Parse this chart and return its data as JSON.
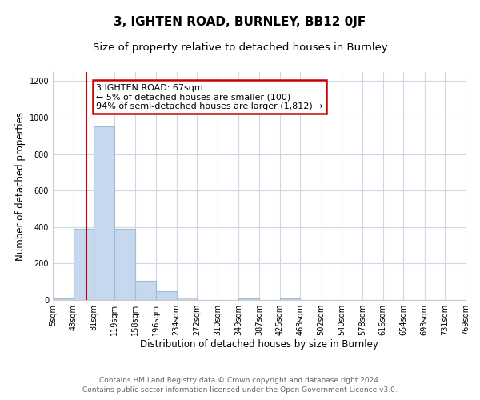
{
  "title": "3, IGHTEN ROAD, BURNLEY, BB12 0JF",
  "subtitle": "Size of property relative to detached houses in Burnley",
  "xlabel": "Distribution of detached houses by size in Burnley",
  "ylabel": "Number of detached properties",
  "bin_edges": [
    5,
    43,
    81,
    119,
    158,
    196,
    234,
    272,
    310,
    349,
    387,
    425,
    463,
    502,
    540,
    578,
    616,
    654,
    693,
    731,
    769
  ],
  "bar_heights": [
    10,
    390,
    950,
    390,
    105,
    50,
    15,
    0,
    0,
    10,
    0,
    10,
    0,
    0,
    0,
    0,
    0,
    0,
    0,
    0
  ],
  "bar_color": "#c5d8ed",
  "bar_edge_color": "#a0bcd8",
  "bar_edge_width": 0.8,
  "red_line_x": 67,
  "red_line_color": "#cc0000",
  "annotation_line1": "3 IGHTEN ROAD: 67sqm",
  "annotation_line2": "← 5% of detached houses are smaller (100)",
  "annotation_line3": "94% of semi-detached houses are larger (1,812) →",
  "annotation_box_color": "#cc0000",
  "ylim": [
    0,
    1250
  ],
  "yticks": [
    0,
    200,
    400,
    600,
    800,
    1000,
    1200
  ],
  "tick_labels": [
    "5sqm",
    "43sqm",
    "81sqm",
    "119sqm",
    "158sqm",
    "196sqm",
    "234sqm",
    "272sqm",
    "310sqm",
    "349sqm",
    "387sqm",
    "425sqm",
    "463sqm",
    "502sqm",
    "540sqm",
    "578sqm",
    "616sqm",
    "654sqm",
    "693sqm",
    "731sqm",
    "769sqm"
  ],
  "footer_line1": "Contains HM Land Registry data © Crown copyright and database right 2024.",
  "footer_line2": "Contains public sector information licensed under the Open Government Licence v3.0.",
  "bg_color": "#ffffff",
  "grid_color": "#d0d8e8",
  "title_fontsize": 11,
  "subtitle_fontsize": 9.5,
  "xlabel_fontsize": 8.5,
  "ylabel_fontsize": 8.5,
  "tick_fontsize": 7,
  "footer_fontsize": 6.5
}
